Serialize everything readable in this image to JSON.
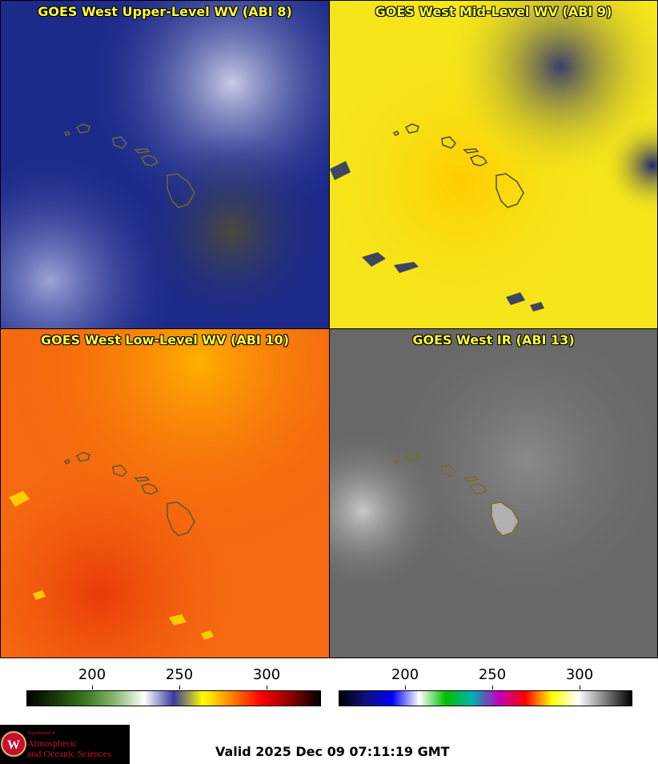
{
  "panels": [
    {
      "title": "GOES West Upper-Level WV (ABI 8)",
      "base": "#1c2a8a",
      "accent": "#c8cbe6",
      "island": "#6b6a2c"
    },
    {
      "title": "GOES West Mid-Level WV (ABI 9)",
      "base": "#f5e51a",
      "accent": "#1e2a6e",
      "island": "#4a4a24"
    },
    {
      "title": "GOES West Low-Level WV (ABI 10)",
      "base": "#f45a10",
      "accent": "#ffd700",
      "island": "#5a5a2a"
    },
    {
      "title": "GOES West IR (ABI 13)",
      "base": "#6a6a6a",
      "accent": "#d9d9d9",
      "island": "#7a6a2a"
    }
  ],
  "colorbars": [
    {
      "ticks": [
        "200",
        "250",
        "300"
      ],
      "stops": [
        "#000000",
        "#1a3a0a",
        "#3a7a20",
        "#8ab870",
        "#ffffff",
        "#3a3aa0",
        "#ffff00",
        "#ff8000",
        "#ff0000",
        "#8b0000",
        "#000000"
      ]
    },
    {
      "ticks": [
        "200",
        "250",
        "300"
      ],
      "stops": [
        "#000000",
        "#101080",
        "#0000ff",
        "#ffffff",
        "#00c000",
        "#00b0b0",
        "#c000c0",
        "#ff0000",
        "#ffff00",
        "#ffffff",
        "#808080",
        "#000000"
      ]
    }
  ],
  "logo": {
    "line1": "Department of",
    "line2": "Atmospheric",
    "line3": "and Oceanic Sciences",
    "seal": "W"
  },
  "valid_text": "Valid 2025 Dec 09 07:11:19 GMT"
}
